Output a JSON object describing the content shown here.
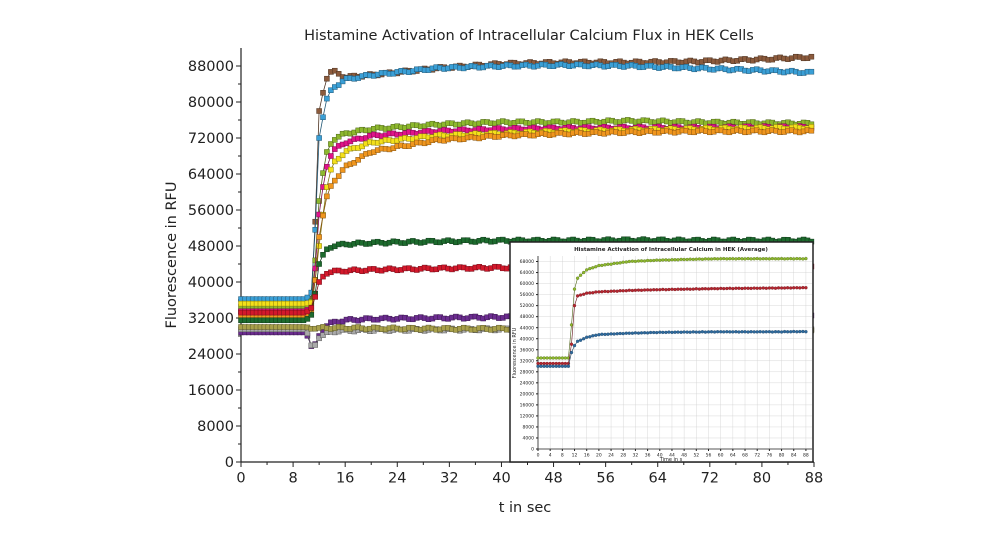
{
  "chart_data": [
    {
      "type": "scatter",
      "title": "Histamine Activation of Intracellular Calcium Flux in HEK  Cells",
      "xlabel": "t in sec",
      "ylabel": "Fluorescence in RFU",
      "xlim": [
        0,
        88
      ],
      "ylim": [
        0,
        92000
      ],
      "xticks": [
        "0",
        "8",
        "16",
        "24",
        "32",
        "40",
        "48",
        "56",
        "64",
        "72",
        "80",
        "88"
      ],
      "yticks": [
        "0",
        "8000",
        "16000",
        "24000",
        "32000",
        "40000",
        "48000",
        "56000",
        "64000",
        "72000",
        "80000",
        "88000"
      ],
      "grid": false,
      "series": [
        {
          "color": "#8b5a3c",
          "points": [
            [
              0,
              33500
            ],
            [
              10,
              33500
            ],
            [
              11,
              37000
            ],
            [
              12,
              78000
            ],
            [
              13,
              85000
            ],
            [
              14,
              87000
            ],
            [
              16,
              85500
            ],
            [
              20,
              86000
            ],
            [
              30,
              87500
            ],
            [
              40,
              88500
            ],
            [
              50,
              88800
            ],
            [
              60,
              88800
            ],
            [
              70,
              89000
            ],
            [
              80,
              89500
            ],
            [
              88,
              90000
            ]
          ]
        },
        {
          "color": "#3a9fd6",
          "points": [
            [
              0,
              36200
            ],
            [
              10,
              36200
            ],
            [
              11,
              38000
            ],
            [
              12,
              72000
            ],
            [
              13,
              80000
            ],
            [
              14,
              83000
            ],
            [
              16,
              85000
            ],
            [
              20,
              86000
            ],
            [
              30,
              87500
            ],
            [
              40,
              88000
            ],
            [
              50,
              88200
            ],
            [
              60,
              88000
            ],
            [
              70,
              87500
            ],
            [
              80,
              87000
            ],
            [
              88,
              86500
            ]
          ]
        },
        {
          "color": "#8db82d",
          "points": [
            [
              0,
              34500
            ],
            [
              10,
              34500
            ],
            [
              11,
              36000
            ],
            [
              12,
              58000
            ],
            [
              13,
              68000
            ],
            [
              14,
              71500
            ],
            [
              16,
              73000
            ],
            [
              20,
              74000
            ],
            [
              30,
              75000
            ],
            [
              40,
              75500
            ],
            [
              50,
              75500
            ],
            [
              60,
              75800
            ],
            [
              70,
              75500
            ],
            [
              80,
              75300
            ],
            [
              88,
              75200
            ]
          ]
        },
        {
          "color": "#e0138a",
          "points": [
            [
              0,
              33500
            ],
            [
              10,
              33500
            ],
            [
              11,
              35000
            ],
            [
              12,
              55000
            ],
            [
              13,
              65000
            ],
            [
              14,
              69000
            ],
            [
              16,
              71000
            ],
            [
              20,
              72500
            ],
            [
              30,
              73500
            ],
            [
              40,
              74000
            ],
            [
              50,
              74200
            ],
            [
              60,
              74300
            ],
            [
              70,
              74300
            ],
            [
              80,
              74400
            ],
            [
              88,
              74400
            ]
          ]
        },
        {
          "color": "#f4e01a",
          "points": [
            [
              0,
              35200
            ],
            [
              10,
              35200
            ],
            [
              11,
              35500
            ],
            [
              12,
              48000
            ],
            [
              13,
              60000
            ],
            [
              14,
              66000
            ],
            [
              16,
              69000
            ],
            [
              20,
              71000
            ],
            [
              30,
              72500
            ],
            [
              40,
              73000
            ],
            [
              50,
              73500
            ],
            [
              60,
              73800
            ],
            [
              70,
              74000
            ],
            [
              80,
              74200
            ],
            [
              88,
              74300
            ]
          ]
        },
        {
          "color": "#f0961e",
          "points": [
            [
              0,
              32500
            ],
            [
              10,
              32500
            ],
            [
              11,
              34000
            ],
            [
              12,
              50000
            ],
            [
              13,
              58000
            ],
            [
              14,
              62000
            ],
            [
              16,
              65500
            ],
            [
              20,
              69000
            ],
            [
              30,
              71500
            ],
            [
              40,
              72500
            ],
            [
              50,
              73000
            ],
            [
              60,
              73300
            ],
            [
              70,
              73500
            ],
            [
              80,
              73500
            ],
            [
              88,
              73500
            ]
          ]
        },
        {
          "color": "#1d6b2e",
          "points": [
            [
              0,
              31500
            ],
            [
              10,
              31500
            ],
            [
              11,
              33000
            ],
            [
              12,
              44000
            ],
            [
              13,
              47000
            ],
            [
              14,
              48000
            ],
            [
              16,
              48400
            ],
            [
              20,
              48700
            ],
            [
              30,
              49000
            ],
            [
              40,
              49200
            ],
            [
              50,
              49200
            ],
            [
              60,
              49300
            ],
            [
              70,
              49200
            ],
            [
              80,
              49200
            ],
            [
              88,
              49200
            ]
          ]
        },
        {
          "color": "#d3182b",
          "points": [
            [
              0,
              33200
            ],
            [
              10,
              33200
            ],
            [
              11,
              34500
            ],
            [
              12,
              40000
            ],
            [
              13,
              42000
            ],
            [
              14,
              42300
            ],
            [
              16,
              42500
            ],
            [
              20,
              42700
            ],
            [
              30,
              43000
            ],
            [
              40,
              43200
            ],
            [
              50,
              43300
            ],
            [
              60,
              43300
            ],
            [
              70,
              43400
            ],
            [
              80,
              43400
            ],
            [
              88,
              43500
            ]
          ]
        },
        {
          "color": "#6b2c8f",
          "points": [
            [
              0,
              28800
            ],
            [
              10,
              28800
            ],
            [
              11,
              25000
            ],
            [
              12,
              28000
            ],
            [
              13,
              30000
            ],
            [
              14,
              31000
            ],
            [
              16,
              31500
            ],
            [
              20,
              31800
            ],
            [
              30,
              32000
            ],
            [
              40,
              32200
            ],
            [
              50,
              32200
            ],
            [
              60,
              32300
            ],
            [
              70,
              32300
            ],
            [
              80,
              32300
            ],
            [
              88,
              32300
            ]
          ]
        },
        {
          "color": "#a9a9a9",
          "points": [
            [
              0,
              29500
            ],
            [
              10,
              29500
            ],
            [
              11,
              25000
            ],
            [
              12,
              27500
            ],
            [
              13,
              28500
            ],
            [
              14,
              29000
            ],
            [
              16,
              29200
            ],
            [
              20,
              29300
            ],
            [
              30,
              29400
            ],
            [
              40,
              29500
            ],
            [
              50,
              29500
            ],
            [
              60,
              29500
            ],
            [
              70,
              29500
            ],
            [
              80,
              29500
            ],
            [
              88,
              29500
            ]
          ]
        },
        {
          "color": "#a8a04a",
          "points": [
            [
              0,
              30000
            ],
            [
              10,
              30000
            ],
            [
              11,
              29500
            ],
            [
              12,
              29800
            ],
            [
              13,
              29800
            ],
            [
              16,
              29800
            ],
            [
              20,
              29700
            ],
            [
              30,
              29600
            ],
            [
              40,
              29600
            ],
            [
              50,
              29600
            ],
            [
              60,
              29500
            ],
            [
              70,
              29500
            ],
            [
              80,
              29500
            ],
            [
              88,
              29500
            ]
          ]
        }
      ]
    },
    {
      "type": "scatter",
      "title": "Histamine  Activation of Intracellular Calcium in HEK (Average)",
      "xlabel": "Time in s",
      "ylabel": "Fluorescence in RFU",
      "xlim": [
        0,
        90
      ],
      "ylim": [
        0,
        70000
      ],
      "xticks": [
        "0",
        "4",
        "8",
        "12",
        "16",
        "20",
        "24",
        "28",
        "32",
        "36",
        "40",
        "44",
        "48",
        "52",
        "56",
        "60",
        "64",
        "68",
        "72",
        "76",
        "80",
        "84",
        "88"
      ],
      "yticks": [
        "0",
        "4000",
        "8000",
        "12000",
        "16000",
        "20000",
        "24000",
        "28000",
        "32000",
        "36000",
        "40000",
        "44000",
        "48000",
        "52000",
        "56000",
        "60000",
        "64000",
        "68000"
      ],
      "grid": true,
      "series": [
        {
          "color": "#8db82d",
          "points": [
            [
              0,
              33000
            ],
            [
              10,
              33000
            ],
            [
              11,
              45000
            ],
            [
              12,
              58000
            ],
            [
              13,
              62000
            ],
            [
              16,
              65000
            ],
            [
              20,
              66500
            ],
            [
              30,
              68000
            ],
            [
              40,
              68500
            ],
            [
              50,
              68800
            ],
            [
              60,
              69000
            ],
            [
              70,
              69000
            ],
            [
              80,
              69000
            ],
            [
              88,
              69000
            ]
          ]
        },
        {
          "color": "#b5252f",
          "points": [
            [
              0,
              31000
            ],
            [
              10,
              31000
            ],
            [
              11,
              38000
            ],
            [
              12,
              52000
            ],
            [
              13,
              55500
            ],
            [
              16,
              56500
            ],
            [
              20,
              57000
            ],
            [
              30,
              57500
            ],
            [
              40,
              57800
            ],
            [
              50,
              58000
            ],
            [
              60,
              58200
            ],
            [
              70,
              58300
            ],
            [
              80,
              58400
            ],
            [
              88,
              58500
            ]
          ]
        },
        {
          "color": "#2e6a9e",
          "points": [
            [
              0,
              30000
            ],
            [
              10,
              30000
            ],
            [
              11,
              35000
            ],
            [
              12,
              37500
            ],
            [
              13,
              39000
            ],
            [
              16,
              40500
            ],
            [
              20,
              41500
            ],
            [
              30,
              42000
            ],
            [
              40,
              42300
            ],
            [
              50,
              42400
            ],
            [
              60,
              42500
            ],
            [
              70,
              42500
            ],
            [
              80,
              42500
            ],
            [
              88,
              42600
            ]
          ]
        }
      ]
    }
  ]
}
